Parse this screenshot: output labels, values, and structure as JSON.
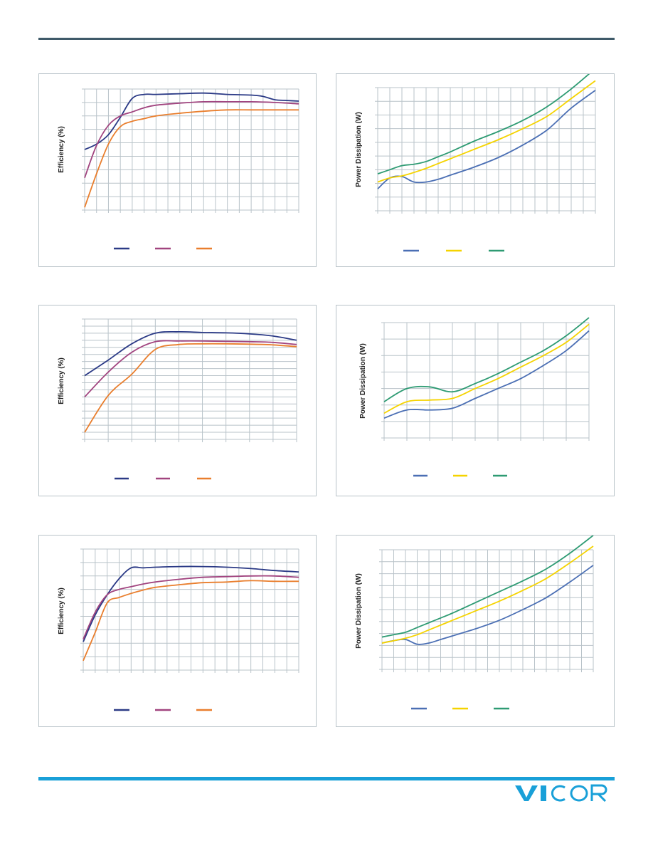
{
  "colors": {
    "header_rule": "#3f5a69",
    "footer_rule": "#19a0d8",
    "grid": "#b9c3c9",
    "efficiency_series": [
      "#2b3a86",
      "#a1447f",
      "#e97e2d"
    ],
    "dissipation_series": [
      "#4b6fb4",
      "#f5d300",
      "#2e9b73"
    ]
  },
  "logo": {
    "text": "VICOR",
    "color": "#19a0d8"
  },
  "chart_data": [
    {
      "type": "line",
      "title": "",
      "xlabel": "",
      "ylabel": "Efficiency (%)",
      "ylim": [
        0,
        9
      ],
      "xlim": [
        0,
        18
      ],
      "grid": true,
      "legend": "bottom-center",
      "series": [
        {
          "color": "#2b3a86",
          "x": [
            0,
            1,
            2,
            3,
            4,
            5,
            6,
            8,
            10,
            12,
            14,
            15,
            16,
            17,
            18
          ],
          "y": [
            4.5,
            4.9,
            5.6,
            6.9,
            8.3,
            8.6,
            8.6,
            8.65,
            8.7,
            8.6,
            8.55,
            8.45,
            8.2,
            8.15,
            8.1
          ]
        },
        {
          "color": "#a1447f",
          "x": [
            0,
            1,
            2,
            3,
            4,
            5,
            6,
            8,
            10,
            12,
            14,
            16,
            18
          ],
          "y": [
            2.4,
            4.8,
            6.3,
            7.0,
            7.3,
            7.6,
            7.8,
            7.95,
            8.05,
            8.05,
            8.05,
            8.0,
            7.9
          ]
        },
        {
          "color": "#e97e2d",
          "x": [
            0,
            1,
            2,
            3,
            4,
            5,
            6,
            8,
            10,
            12,
            14,
            16,
            18
          ],
          "y": [
            0.2,
            2.7,
            4.9,
            6.2,
            6.6,
            6.8,
            7.0,
            7.2,
            7.35,
            7.45,
            7.45,
            7.45,
            7.45
          ]
        }
      ]
    },
    {
      "type": "line",
      "title": "",
      "xlabel": "",
      "ylabel": "Power Dissipation (W)",
      "ylim": [
        0,
        9
      ],
      "xlim": [
        0,
        18
      ],
      "grid": true,
      "legend": "bottom-center",
      "series": [
        {
          "color": "#4b6fb4",
          "x": [
            0,
            1,
            2,
            3,
            4,
            5,
            6,
            8,
            10,
            12,
            14,
            16,
            18
          ],
          "y": [
            1.6,
            2.4,
            2.5,
            2.1,
            2.1,
            2.3,
            2.6,
            3.2,
            3.9,
            4.8,
            5.9,
            7.5,
            8.8
          ]
        },
        {
          "color": "#f5d300",
          "x": [
            0,
            1,
            2,
            3,
            4,
            5,
            6,
            8,
            10,
            12,
            14,
            16,
            18
          ],
          "y": [
            2.1,
            2.4,
            2.55,
            2.8,
            3.1,
            3.45,
            3.8,
            4.5,
            5.2,
            6.0,
            6.9,
            8.2,
            9.5
          ]
        },
        {
          "color": "#2e9b73",
          "x": [
            0,
            1,
            2,
            3,
            4,
            5,
            6,
            8,
            10,
            12,
            14,
            16,
            18
          ],
          "y": [
            2.7,
            3.0,
            3.3,
            3.4,
            3.6,
            3.95,
            4.3,
            5.1,
            5.8,
            6.6,
            7.6,
            8.9,
            10.4
          ]
        }
      ]
    },
    {
      "type": "line",
      "title": "",
      "xlabel": "",
      "ylabel": "Efficiency (%)",
      "ylim": [
        0,
        17
      ],
      "xlim": [
        0,
        9
      ],
      "grid": true,
      "legend": "bottom-center",
      "series": [
        {
          "color": "#2b3a86",
          "x": [
            0,
            1,
            2,
            3,
            4,
            5,
            6,
            7,
            8,
            9
          ],
          "y": [
            9.0,
            11.2,
            13.5,
            15.0,
            15.2,
            15.1,
            15.05,
            14.9,
            14.6,
            14.0
          ]
        },
        {
          "color": "#a1447f",
          "x": [
            0,
            1,
            2,
            3,
            4,
            5,
            6,
            7,
            8,
            9
          ],
          "y": [
            6.0,
            9.5,
            12.3,
            13.8,
            13.9,
            13.9,
            13.85,
            13.8,
            13.7,
            13.4
          ]
        },
        {
          "color": "#e97e2d",
          "x": [
            0,
            1,
            2,
            3,
            4,
            5,
            6,
            7,
            8,
            9
          ],
          "y": [
            1.0,
            6.2,
            9.2,
            12.7,
            13.4,
            13.5,
            13.5,
            13.45,
            13.35,
            13.1
          ]
        }
      ]
    },
    {
      "type": "line",
      "title": "",
      "xlabel": "",
      "ylabel": "Power Dissipation (W)",
      "ylim": [
        0,
        7
      ],
      "xlim": [
        0,
        9
      ],
      "grid": true,
      "legend": "bottom-center",
      "series": [
        {
          "color": "#4b6fb4",
          "x": [
            0,
            1,
            2,
            3,
            4,
            5,
            6,
            7,
            8,
            9
          ],
          "y": [
            1.2,
            1.7,
            1.7,
            1.8,
            2.4,
            3.0,
            3.6,
            4.4,
            5.3,
            6.5
          ]
        },
        {
          "color": "#f5d300",
          "x": [
            0,
            1,
            2,
            3,
            4,
            5,
            6,
            7,
            8,
            9
          ],
          "y": [
            1.5,
            2.2,
            2.3,
            2.4,
            3.0,
            3.6,
            4.3,
            5.0,
            5.8,
            6.9
          ]
        },
        {
          "color": "#2e9b73",
          "x": [
            0,
            1,
            2,
            3,
            4,
            5,
            6,
            7,
            8,
            9
          ],
          "y": [
            2.2,
            3.0,
            3.1,
            2.8,
            3.3,
            3.9,
            4.6,
            5.3,
            6.2,
            7.3
          ]
        }
      ]
    },
    {
      "type": "line",
      "title": "",
      "xlabel": "",
      "ylabel": "Efficiency (%)",
      "ylim": [
        0,
        9
      ],
      "xlim": [
        0,
        18
      ],
      "grid": true,
      "legend": "bottom-center",
      "series": [
        {
          "color": "#2b3a86",
          "x": [
            0,
            1,
            2,
            3,
            4,
            5,
            6,
            8,
            10,
            12,
            14,
            16,
            18
          ],
          "y": [
            2.1,
            4.1,
            5.6,
            6.8,
            7.6,
            7.6,
            7.65,
            7.7,
            7.7,
            7.65,
            7.55,
            7.4,
            7.3
          ]
        },
        {
          "color": "#a1447f",
          "x": [
            0,
            1,
            2,
            3,
            4,
            5,
            6,
            8,
            10,
            12,
            14,
            16,
            18
          ],
          "y": [
            2.3,
            4.3,
            5.6,
            6.0,
            6.2,
            6.4,
            6.55,
            6.75,
            6.9,
            6.95,
            7.0,
            7.0,
            6.9
          ]
        },
        {
          "color": "#e97e2d",
          "x": [
            0,
            1,
            2,
            3,
            4,
            5,
            6,
            8,
            10,
            12,
            14,
            16,
            18
          ],
          "y": [
            0.7,
            2.8,
            5.0,
            5.4,
            5.7,
            5.95,
            6.15,
            6.35,
            6.5,
            6.55,
            6.65,
            6.6,
            6.6
          ]
        }
      ]
    },
    {
      "type": "line",
      "title": "",
      "xlabel": "",
      "ylabel": "Power Dissipation (W)",
      "ylim": [
        0,
        10
      ],
      "xlim": [
        0,
        18
      ],
      "grid": true,
      "legend": "bottom-center",
      "series": [
        {
          "color": "#4b6fb4",
          "x": [
            0,
            1,
            2,
            3,
            4,
            5,
            6,
            8,
            10,
            12,
            14,
            16,
            18
          ],
          "y": [
            2.2,
            2.4,
            2.5,
            2.1,
            2.2,
            2.5,
            2.8,
            3.4,
            4.1,
            5.0,
            6.0,
            7.3,
            8.7
          ]
        },
        {
          "color": "#f5d300",
          "x": [
            0,
            1,
            2,
            3,
            4,
            5,
            6,
            8,
            10,
            12,
            14,
            16,
            18
          ],
          "y": [
            2.2,
            2.4,
            2.6,
            2.9,
            3.3,
            3.7,
            4.1,
            4.9,
            5.7,
            6.6,
            7.6,
            8.9,
            10.3
          ]
        },
        {
          "color": "#2e9b73",
          "x": [
            0,
            1,
            2,
            3,
            4,
            5,
            6,
            8,
            10,
            12,
            14,
            16,
            18
          ],
          "y": [
            2.7,
            2.9,
            3.1,
            3.5,
            3.9,
            4.3,
            4.7,
            5.6,
            6.5,
            7.4,
            8.4,
            9.7,
            11.2
          ]
        }
      ]
    }
  ]
}
